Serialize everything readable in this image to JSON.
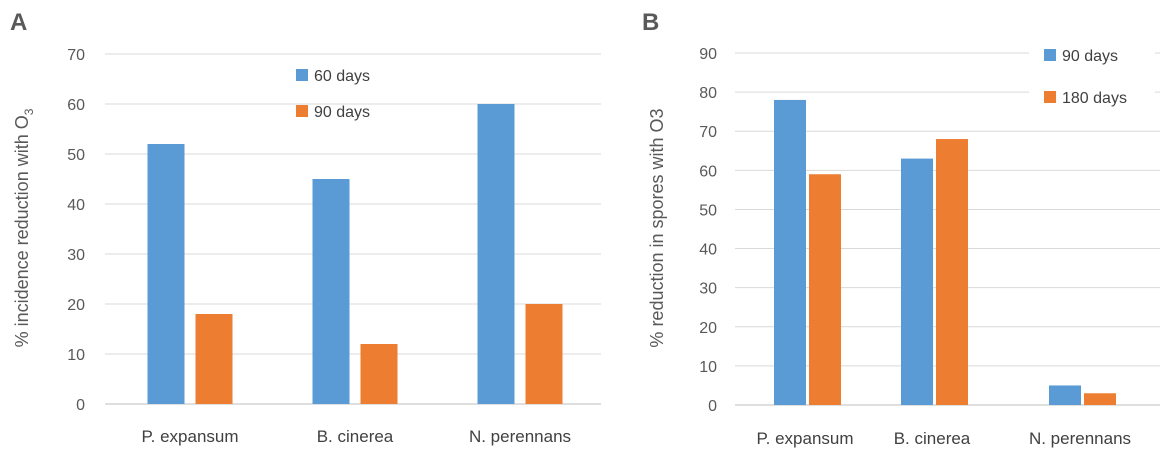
{
  "chart_data": [
    {
      "panel": "A",
      "type": "bar",
      "categories": [
        "P. expansum",
        "B. cinerea",
        "N. perennans"
      ],
      "series": [
        {
          "name": "60 days",
          "values": [
            52,
            45,
            60
          ]
        },
        {
          "name": "90 days",
          "values": [
            18,
            12,
            20
          ]
        }
      ],
      "ylabel_prefix": "% incidence reduction with O",
      "ylabel_subscript": "3",
      "ylim": [
        0,
        70
      ],
      "yticks": [
        0,
        10,
        20,
        30,
        40,
        50,
        60,
        70
      ],
      "grid": true,
      "legend": "top-center"
    },
    {
      "panel": "B",
      "type": "bar",
      "categories": [
        "P. expansum",
        "B. cinerea",
        "N. perennans"
      ],
      "series": [
        {
          "name": "90 days",
          "values": [
            78,
            63,
            5
          ]
        },
        {
          "name": "180 days",
          "values": [
            59,
            68,
            3
          ]
        }
      ],
      "ylabel": "% reduction in spores with O3",
      "ylim": [
        0,
        90
      ],
      "yticks": [
        0,
        10,
        20,
        30,
        40,
        50,
        60,
        70,
        80,
        90
      ],
      "grid": true,
      "legend": "top-right"
    }
  ],
  "colors": {
    "series1": "#5b9bd5",
    "series2": "#ed7d31"
  }
}
